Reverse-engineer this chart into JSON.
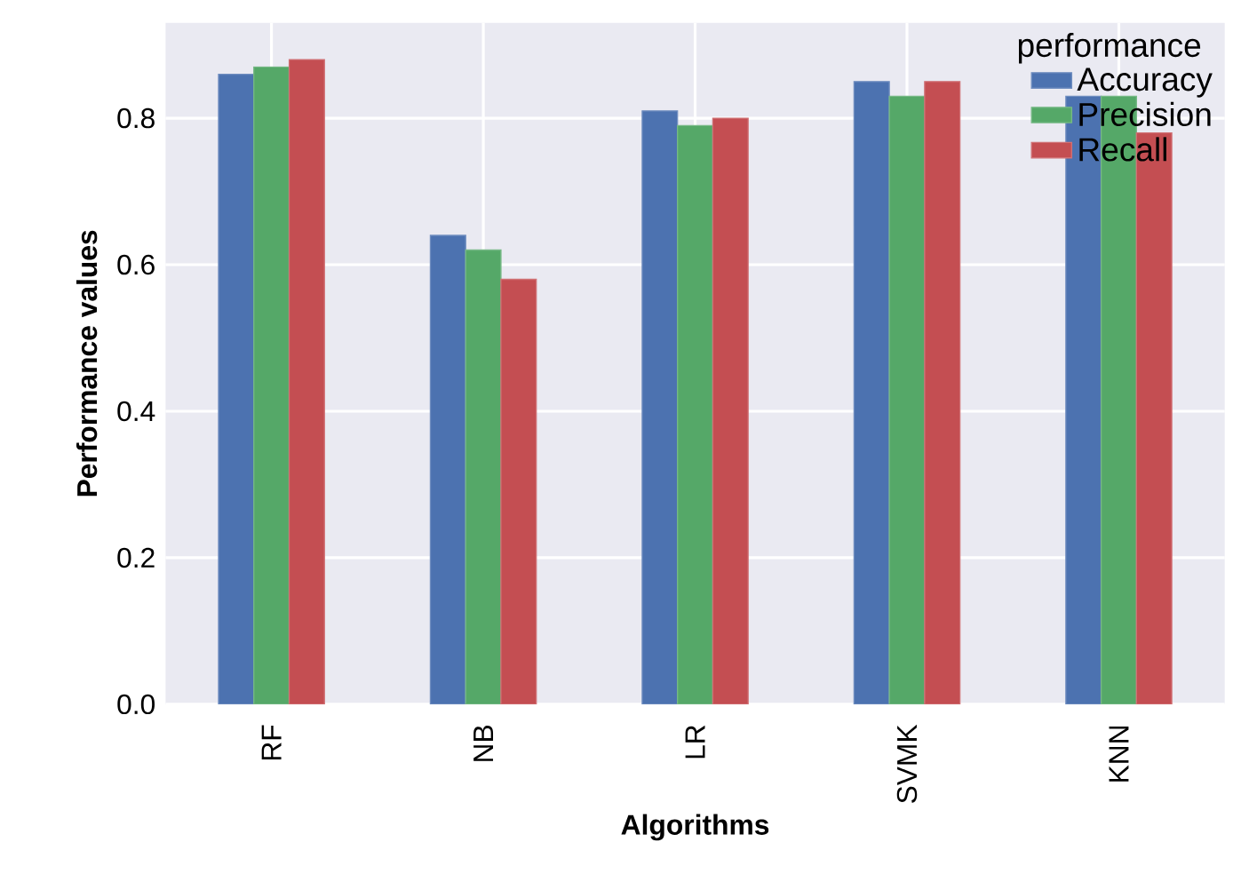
{
  "chart_data": {
    "type": "bar",
    "xlabel": "Algorithms",
    "ylabel": "Performance values",
    "legend_title": "performance",
    "categories": [
      "RF",
      "NB",
      "LR",
      "SVMK",
      "KNN"
    ],
    "series": [
      {
        "name": "Accuracy",
        "color": "#4c72b0",
        "values": [
          0.86,
          0.64,
          0.81,
          0.85,
          0.83
        ]
      },
      {
        "name": "Precision",
        "color": "#55a868",
        "values": [
          0.87,
          0.62,
          0.79,
          0.83,
          0.83
        ]
      },
      {
        "name": "Recall",
        "color": "#c44e52",
        "values": [
          0.88,
          0.58,
          0.8,
          0.85,
          0.78
        ]
      }
    ],
    "ylim": [
      0,
      0.93
    ],
    "yticks": [
      {
        "value": 0,
        "label": "0.0"
      },
      0.2,
      0.4,
      0.6,
      0.8
    ],
    "grid": true,
    "legend": "top right"
  }
}
